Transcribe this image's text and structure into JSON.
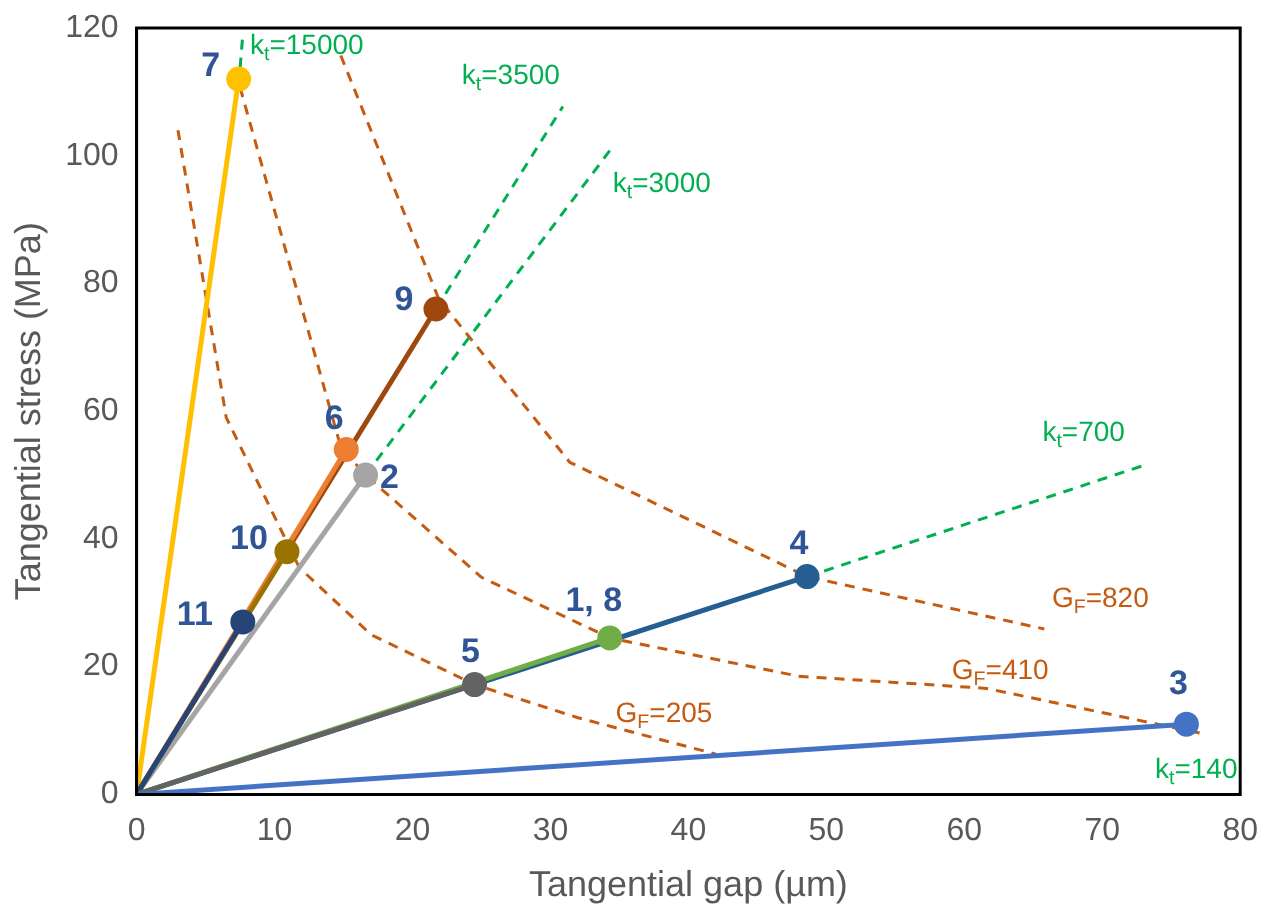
{
  "chart_data": {
    "type": "line",
    "xlabel": "Tangential gap (µm)",
    "ylabel": "Tangential stress (MPa)",
    "xlim": [
      0,
      80
    ],
    "xticks": [
      0,
      10,
      20,
      30,
      40,
      50,
      60,
      70,
      80
    ],
    "ylim": [
      0,
      120
    ],
    "yticks": [
      0,
      20,
      40,
      60,
      80,
      100,
      120
    ],
    "grid": false,
    "legend": false,
    "marker": "circle",
    "line_style": "solid",
    "series": [
      {
        "name": "G$_{F}$=205",
        "color": "#c55a11",
        "line_style": "dashed",
        "marker": "none",
        "x": [
          3.0,
          6.5,
          11.8,
          17,
          24.5,
          32,
          42
        ],
        "values": [
          104,
          59,
          35.5,
          25,
          17.2,
          12,
          6.3
        ]
      },
      {
        "name": "G$_{F}$=410",
        "color": "#c55a11",
        "line_style": "dashed",
        "marker": "none",
        "x": [
          7.5,
          14.8,
          16.6,
          25,
          34.3,
          48,
          61.6,
          77.1
        ],
        "values": [
          110.7,
          54.4,
          50,
          34,
          24.5,
          18.5,
          16.6,
          9.6
        ]
      },
      {
        "name": "G$_{F}$=820",
        "color": "#c55a11",
        "line_style": "dashed",
        "marker": "none",
        "x": [
          14.8,
          21.9,
          31.4,
          48.6,
          65.8
        ],
        "values": [
          115.7,
          77.6,
          52,
          34.1,
          25.9
        ]
      },
      {
        "name": "k$_{t}$=15000",
        "color": "#00b050",
        "line_style": "dashed",
        "marker": "none",
        "x": [
          7.4,
          7.7
        ],
        "values": [
          111,
          119
        ]
      },
      {
        "name": "k$_{t}$=3500",
        "color": "#00b050",
        "line_style": "dashed",
        "marker": "none",
        "x": [
          21.7,
          30.9
        ],
        "values": [
          76,
          107.7
        ]
      },
      {
        "name": "k$_{t}$=3000",
        "color": "#00b050",
        "line_style": "dashed",
        "marker": "none",
        "x": [
          16.6,
          34.3
        ],
        "values": [
          50,
          100.8
        ]
      },
      {
        "name": "k$_{t}$=700",
        "color": "#00b050",
        "line_style": "dashed",
        "marker": "none",
        "x": [
          48.6,
          73
        ],
        "values": [
          34.1,
          51.5
        ]
      },
      {
        "color": "#ffc000",
        "x": [
          0,
          7.4
        ],
        "values": [
          0,
          112
        ]
      },
      {
        "color": "#9e480e",
        "x": [
          0,
          21.7
        ],
        "values": [
          0,
          76
        ]
      },
      {
        "color": "#ed7d31",
        "x": [
          0,
          15.2
        ],
        "values": [
          0,
          54
        ]
      },
      {
        "color": "#a5a5a5",
        "x": [
          0,
          16.6
        ],
        "values": [
          0,
          50
        ]
      },
      {
        "color": "#997300",
        "x": [
          0,
          10.9
        ],
        "values": [
          0,
          38
        ]
      },
      {
        "color": "#264478",
        "x": [
          0,
          7.7
        ],
        "values": [
          0,
          27
        ]
      },
      {
        "color": "#255e91",
        "x": [
          0,
          48.6
        ],
        "values": [
          0,
          34.1
        ]
      },
      {
        "color": "#70ad47",
        "x": [
          0,
          34.3
        ],
        "values": [
          0,
          24.5
        ]
      },
      {
        "color": "#636363",
        "x": [
          0,
          24.5
        ],
        "values": [
          0,
          17.2
        ]
      },
      {
        "color": "#4472c4",
        "x": [
          0,
          76.1
        ],
        "values": [
          0,
          11
        ]
      }
    ],
    "annotations": [
      {
        "text": "7",
        "x": 7.4,
        "y": 112
      },
      {
        "text": "9",
        "x": 21.7,
        "y": 76
      },
      {
        "text": "6",
        "x": 15.2,
        "y": 54
      },
      {
        "text": "2",
        "x": 16.6,
        "y": 50
      },
      {
        "text": "10",
        "x": 10.9,
        "y": 38
      },
      {
        "text": "11",
        "x": 7.7,
        "y": 27
      },
      {
        "text": "4",
        "x": 48.6,
        "y": 34.1
      },
      {
        "text": "1, 8",
        "x": 34.3,
        "y": 24.5
      },
      {
        "text": "5",
        "x": 24.5,
        "y": 17.2
      },
      {
        "text": "3",
        "x": 76.1,
        "y": 11
      },
      "k$_{t}$=140"
    ]
  }
}
